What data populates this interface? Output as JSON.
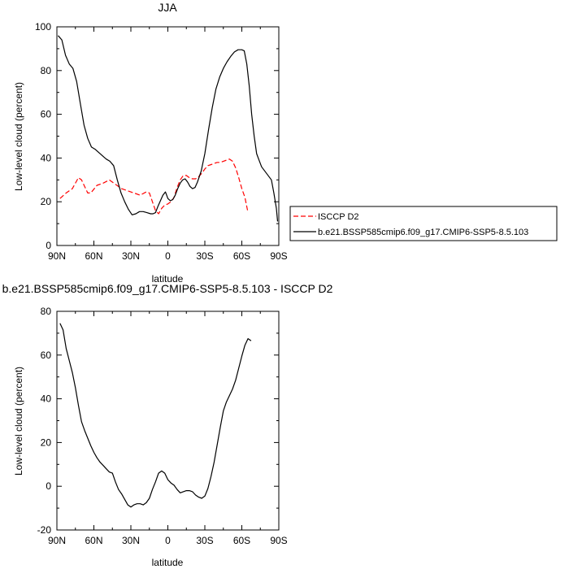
{
  "chart_data": [
    {
      "type": "line",
      "title": "JJA",
      "xlabel": "latitude",
      "ylabel": "Low-level cloud (percent)",
      "xlim": [
        90,
        -90
      ],
      "ylim": [
        0,
        100
      ],
      "x_ticks": [
        {
          "value": 90,
          "label": "90N"
        },
        {
          "value": 60,
          "label": "60N"
        },
        {
          "value": 30,
          "label": "30N"
        },
        {
          "value": 0,
          "label": "0"
        },
        {
          "value": -30,
          "label": "30S"
        },
        {
          "value": -60,
          "label": "60S"
        },
        {
          "value": -90,
          "label": "90S"
        }
      ],
      "y_ticks": [
        0,
        20,
        40,
        60,
        80,
        100
      ],
      "legend_placement": "outside-right",
      "series": [
        {
          "name": "ISCCP D2",
          "color": "#ff0000",
          "dash": "dashed",
          "points": [
            [
              87.5,
              21.5
            ],
            [
              82.5,
              24
            ],
            [
              77.5,
              26
            ],
            [
              72.5,
              31
            ],
            [
              70,
              30
            ],
            [
              65,
              24
            ],
            [
              62.5,
              24
            ],
            [
              57.5,
              27.5
            ],
            [
              52.5,
              28.5
            ],
            [
              47.5,
              30
            ],
            [
              42.5,
              28
            ],
            [
              37.5,
              26
            ],
            [
              32.5,
              25
            ],
            [
              27.5,
              24
            ],
            [
              22.5,
              23
            ],
            [
              17.5,
              24.5
            ],
            [
              15,
              24
            ],
            [
              12.5,
              20
            ],
            [
              10,
              16
            ],
            [
              7.5,
              14.5
            ],
            [
              5,
              17
            ],
            [
              2.5,
              18.5
            ],
            [
              0,
              19
            ],
            [
              -2.5,
              20
            ],
            [
              -5,
              22
            ],
            [
              -7.5,
              26.5
            ],
            [
              -10,
              30
            ],
            [
              -12.5,
              32
            ],
            [
              -15,
              32
            ],
            [
              -17.5,
              31
            ],
            [
              -20,
              30.5
            ],
            [
              -22.5,
              30.5
            ],
            [
              -25,
              31.5
            ],
            [
              -27.5,
              33
            ],
            [
              -30,
              35
            ],
            [
              -32.5,
              36.5
            ],
            [
              -35,
              37
            ],
            [
              -37.5,
              37.5
            ],
            [
              -40,
              38
            ],
            [
              -42.5,
              38
            ],
            [
              -45,
              38.5
            ],
            [
              -47.5,
              39
            ],
            [
              -50,
              39.5
            ],
            [
              -52.5,
              38.5
            ],
            [
              -55,
              35.5
            ],
            [
              -57.5,
              31
            ],
            [
              -60,
              26
            ],
            [
              -62.5,
              22
            ],
            [
              -65,
              15
            ]
          ]
        },
        {
          "name": "b.e21.BSSP585cmip6.f09_g17.CMIP6-SSP5-8.5.103",
          "color": "#000000",
          "dash": "solid",
          "points": [
            [
              89,
              96
            ],
            [
              86,
              94
            ],
            [
              83,
              87
            ],
            [
              80,
              83
            ],
            [
              77,
              81
            ],
            [
              74,
              75
            ],
            [
              71,
              65
            ],
            [
              68,
              55
            ],
            [
              65,
              49
            ],
            [
              62,
              45
            ],
            [
              59,
              44
            ],
            [
              56,
              42.5
            ],
            [
              53,
              41
            ],
            [
              50,
              39.5
            ],
            [
              47,
              38.5
            ],
            [
              44,
              36.5
            ],
            [
              41,
              30
            ],
            [
              38,
              24
            ],
            [
              35,
              20
            ],
            [
              32,
              16.5
            ],
            [
              29,
              14
            ],
            [
              26,
              14.5
            ],
            [
              23,
              15.5
            ],
            [
              20,
              15.5
            ],
            [
              17,
              15
            ],
            [
              14,
              14.5
            ],
            [
              12,
              14.5
            ],
            [
              10,
              15
            ],
            [
              8,
              18
            ],
            [
              6,
              20.5
            ],
            [
              4,
              23
            ],
            [
              2,
              24.5
            ],
            [
              1,
              23
            ],
            [
              0,
              21.5
            ],
            [
              -2,
              20.5
            ],
            [
              -4,
              21
            ],
            [
              -6,
              23
            ],
            [
              -8,
              26
            ],
            [
              -10,
              28.5
            ],
            [
              -12,
              30
            ],
            [
              -14,
              30.5
            ],
            [
              -16,
              29
            ],
            [
              -18,
              27
            ],
            [
              -20,
              26
            ],
            [
              -22,
              26.5
            ],
            [
              -24,
              29
            ],
            [
              -27,
              34
            ],
            [
              -30,
              42
            ],
            [
              -33,
              53
            ],
            [
              -36,
              63
            ],
            [
              -39,
              71.5
            ],
            [
              -42,
              77
            ],
            [
              -45,
              81
            ],
            [
              -48,
              84
            ],
            [
              -51,
              86.5
            ],
            [
              -54,
              88.5
            ],
            [
              -57,
              89.5
            ],
            [
              -60,
              89.5
            ],
            [
              -62,
              89
            ],
            [
              -64,
              83
            ],
            [
              -66,
              73
            ],
            [
              -68,
              60
            ],
            [
              -70,
              50
            ],
            [
              -72,
              42
            ],
            [
              -74,
              39
            ],
            [
              -76,
              36
            ],
            [
              -80,
              33
            ],
            [
              -84,
              30
            ],
            [
              -86,
              24
            ],
            [
              -88,
              17
            ],
            [
              -89,
              11
            ]
          ]
        }
      ]
    },
    {
      "type": "line",
      "title": "b.e21.BSSP585cmip6.f09_g17.CMIP6-SSP5-8.5.103 - ISCCP D2",
      "xlabel": "latitude",
      "ylabel": "Low-level cloud (percent)",
      "xlim": [
        90,
        -90
      ],
      "ylim": [
        -20,
        80
      ],
      "x_ticks": [
        {
          "value": 90,
          "label": "90N"
        },
        {
          "value": 60,
          "label": "60N"
        },
        {
          "value": 30,
          "label": "30N"
        },
        {
          "value": 0,
          "label": "0"
        },
        {
          "value": -30,
          "label": "30S"
        },
        {
          "value": -60,
          "label": "60S"
        },
        {
          "value": -90,
          "label": "90S"
        }
      ],
      "y_ticks": [
        -20,
        0,
        20,
        40,
        60,
        80
      ],
      "series": [
        {
          "color": "#000000",
          "dash": "solid",
          "points": [
            [
              87.5,
              74.5
            ],
            [
              85,
              71.5
            ],
            [
              82.5,
              63
            ],
            [
              80,
              57.5
            ],
            [
              77.5,
              52
            ],
            [
              75,
              45
            ],
            [
              72.5,
              37
            ],
            [
              70,
              29.5
            ],
            [
              67.5,
              25.5
            ],
            [
              65,
              22
            ],
            [
              62.5,
              18.5
            ],
            [
              60,
              15.5
            ],
            [
              57.5,
              13
            ],
            [
              55,
              11
            ],
            [
              52.5,
              9.5
            ],
            [
              50,
              8
            ],
            [
              47.5,
              6.5
            ],
            [
              45,
              6
            ],
            [
              42.5,
              2
            ],
            [
              40,
              -1.5
            ],
            [
              37.5,
              -3.5
            ],
            [
              35,
              -6
            ],
            [
              32.5,
              -8.5
            ],
            [
              30,
              -9.5
            ],
            [
              27.5,
              -8.5
            ],
            [
              25,
              -8
            ],
            [
              22.5,
              -8
            ],
            [
              20,
              -8.5
            ],
            [
              17.5,
              -7.5
            ],
            [
              15,
              -5.5
            ],
            [
              12.5,
              -1.5
            ],
            [
              10,
              2
            ],
            [
              7.5,
              6
            ],
            [
              5,
              7
            ],
            [
              2.5,
              6
            ],
            [
              0,
              3
            ],
            [
              -2.5,
              1.5
            ],
            [
              -5,
              0.5
            ],
            [
              -7.5,
              -1.5
            ],
            [
              -10,
              -3
            ],
            [
              -12.5,
              -2.5
            ],
            [
              -15,
              -2
            ],
            [
              -17.5,
              -2
            ],
            [
              -20,
              -2.5
            ],
            [
              -22.5,
              -4
            ],
            [
              -25,
              -5
            ],
            [
              -27.5,
              -5.5
            ],
            [
              -30,
              -4.5
            ],
            [
              -32.5,
              -1
            ],
            [
              -35,
              4.5
            ],
            [
              -37.5,
              11
            ],
            [
              -40,
              19
            ],
            [
              -42.5,
              27
            ],
            [
              -45,
              34.5
            ],
            [
              -47.5,
              38.5
            ],
            [
              -50,
              41.5
            ],
            [
              -52.5,
              44.5
            ],
            [
              -55,
              48.5
            ],
            [
              -57.5,
              54
            ],
            [
              -60,
              59.5
            ],
            [
              -62.5,
              64.5
            ],
            [
              -65,
              67.5
            ],
            [
              -67.5,
              66.5
            ]
          ]
        }
      ]
    }
  ]
}
